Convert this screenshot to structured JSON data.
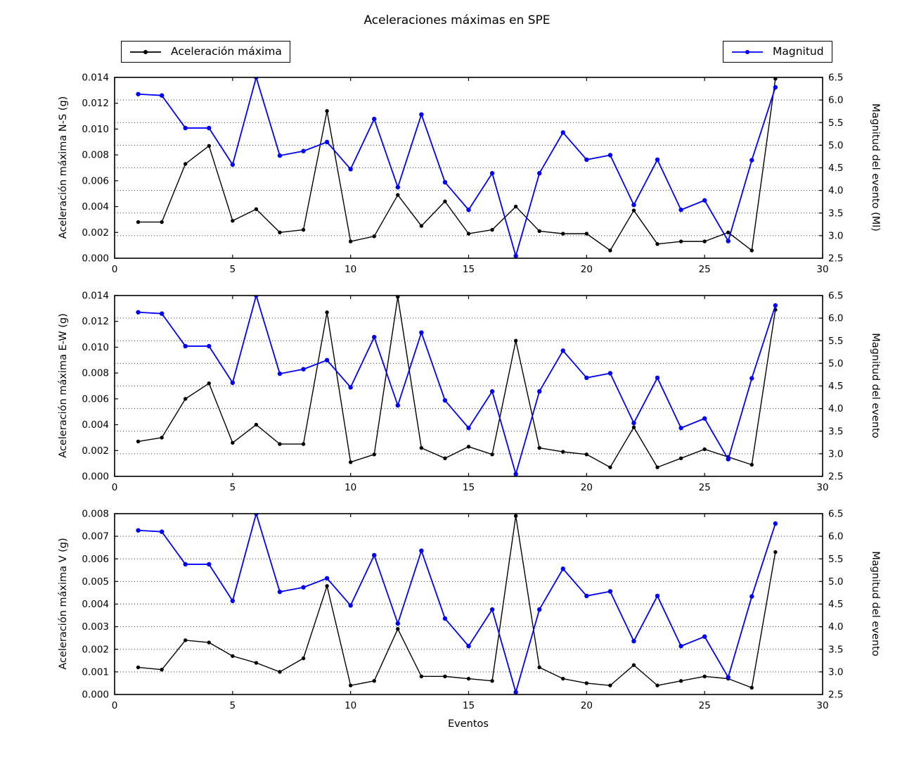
{
  "title": "Aceleraciones máximas en SPE",
  "xlabel": "Eventos",
  "legends": [
    {
      "label": "Aceleración máxima",
      "color": "#000000"
    },
    {
      "label": "Magnitud",
      "color": "#0000ff"
    }
  ],
  "colors": {
    "accel": "#000000",
    "magnitud": "#0000ff",
    "grid": "#333333",
    "axes": "#000000",
    "background": "#ffffff"
  },
  "chart_data": [
    {
      "type": "line",
      "ylabel_left": "Aceleración máxima N-S (g)",
      "ylabel_right": "Magnitud del evento (Ml)",
      "xlim": [
        0,
        30
      ],
      "xticks": [
        0,
        5,
        10,
        15,
        20,
        25,
        30
      ],
      "ylim_left": [
        0,
        0.014
      ],
      "ytick_step_left": 0.002,
      "ytick_decimals_left": 3,
      "ylim_right": [
        2.5,
        6.5
      ],
      "ytick_step_right": 0.5,
      "ytick_decimals_right": 1,
      "grid": true,
      "x": [
        1,
        2,
        3,
        4,
        5,
        6,
        7,
        8,
        9,
        10,
        11,
        12,
        13,
        14,
        15,
        16,
        17,
        18,
        19,
        20,
        21,
        22,
        23,
        24,
        25,
        26,
        27,
        28
      ],
      "series": [
        {
          "name": "Aceleración máxima",
          "yaxis": "left",
          "color": "#000000",
          "values": [
            0.0028,
            0.0028,
            0.0073,
            0.0087,
            0.0029,
            0.0038,
            0.002,
            0.0022,
            0.0114,
            0.0013,
            0.0017,
            0.0049,
            0.0025,
            0.0044,
            0.0019,
            0.0022,
            0.004,
            0.0021,
            0.0019,
            0.0019,
            0.0006,
            0.0037,
            0.0011,
            0.0013,
            0.0013,
            0.002,
            0.0006,
            0.0139
          ]
        },
        {
          "name": "Magnitud",
          "yaxis": "right",
          "color": "#0000ff",
          "values": [
            6.13,
            6.1,
            5.38,
            5.38,
            4.57,
            6.5,
            4.77,
            4.87,
            5.07,
            4.47,
            5.58,
            4.07,
            5.68,
            4.18,
            3.57,
            4.38,
            2.55,
            4.38,
            5.28,
            4.68,
            4.78,
            3.68,
            4.68,
            3.57,
            3.78,
            2.88,
            4.67,
            6.28
          ]
        }
      ]
    },
    {
      "type": "line",
      "ylabel_left": "Aceleración máxima E-W (g)",
      "ylabel_right": "Magnitud del evento",
      "xlim": [
        0,
        30
      ],
      "xticks": [
        0,
        5,
        10,
        15,
        20,
        25,
        30
      ],
      "ylim_left": [
        0,
        0.014
      ],
      "ytick_step_left": 0.002,
      "ytick_decimals_left": 3,
      "ylim_right": [
        2.5,
        6.5
      ],
      "ytick_step_right": 0.5,
      "ytick_decimals_right": 1,
      "grid": true,
      "x": [
        1,
        2,
        3,
        4,
        5,
        6,
        7,
        8,
        9,
        10,
        11,
        12,
        13,
        14,
        15,
        16,
        17,
        18,
        19,
        20,
        21,
        22,
        23,
        24,
        25,
        26,
        27,
        28
      ],
      "series": [
        {
          "name": "Aceleración máxima",
          "yaxis": "left",
          "color": "#000000",
          "values": [
            0.0027,
            0.003,
            0.006,
            0.0072,
            0.0026,
            0.004,
            0.0025,
            0.0025,
            0.0127,
            0.0011,
            0.0017,
            0.0139,
            0.0022,
            0.0014,
            0.0023,
            0.0017,
            0.0105,
            0.0022,
            0.0019,
            0.0017,
            0.0007,
            0.0038,
            0.0007,
            0.0014,
            0.0021,
            0.0015,
            0.0009,
            0.0129
          ]
        },
        {
          "name": "Magnitud",
          "yaxis": "right",
          "color": "#0000ff",
          "values": [
            6.13,
            6.1,
            5.38,
            5.38,
            4.57,
            6.5,
            4.77,
            4.87,
            5.07,
            4.47,
            5.58,
            4.07,
            5.68,
            4.18,
            3.57,
            4.38,
            2.55,
            4.38,
            5.28,
            4.68,
            4.78,
            3.68,
            4.68,
            3.57,
            3.78,
            2.88,
            4.67,
            6.28
          ]
        }
      ]
    },
    {
      "type": "line",
      "ylabel_left": "Aceleración máxima V (g)",
      "ylabel_right": "Magnitud del evento",
      "xlim": [
        0,
        30
      ],
      "xticks": [
        0,
        5,
        10,
        15,
        20,
        25,
        30
      ],
      "ylim_left": [
        0,
        0.008
      ],
      "ytick_step_left": 0.001,
      "ytick_decimals_left": 3,
      "ylim_right": [
        2.5,
        6.5
      ],
      "ytick_step_right": 0.5,
      "ytick_decimals_right": 1,
      "grid": true,
      "x": [
        1,
        2,
        3,
        4,
        5,
        6,
        7,
        8,
        9,
        10,
        11,
        12,
        13,
        14,
        15,
        16,
        17,
        18,
        19,
        20,
        21,
        22,
        23,
        24,
        25,
        26,
        27,
        28
      ],
      "series": [
        {
          "name": "Aceleración máxima",
          "yaxis": "left",
          "color": "#000000",
          "values": [
            0.0012,
            0.0011,
            0.0024,
            0.0023,
            0.0017,
            0.0014,
            0.001,
            0.0016,
            0.0048,
            0.0004,
            0.0006,
            0.0029,
            0.0008,
            0.0008,
            0.0007,
            0.0006,
            0.0079,
            0.0012,
            0.0007,
            0.0005,
            0.0004,
            0.0013,
            0.0004,
            0.0006,
            0.0008,
            0.0007,
            0.0003,
            0.0063
          ]
        },
        {
          "name": "Magnitud",
          "yaxis": "right",
          "color": "#0000ff",
          "values": [
            6.13,
            6.1,
            5.38,
            5.38,
            4.57,
            6.5,
            4.77,
            4.87,
            5.07,
            4.47,
            5.58,
            4.07,
            5.68,
            4.18,
            3.57,
            4.38,
            2.55,
            4.38,
            5.28,
            4.68,
            4.78,
            3.68,
            4.68,
            3.57,
            3.78,
            2.88,
            4.67,
            6.28
          ]
        }
      ]
    }
  ]
}
